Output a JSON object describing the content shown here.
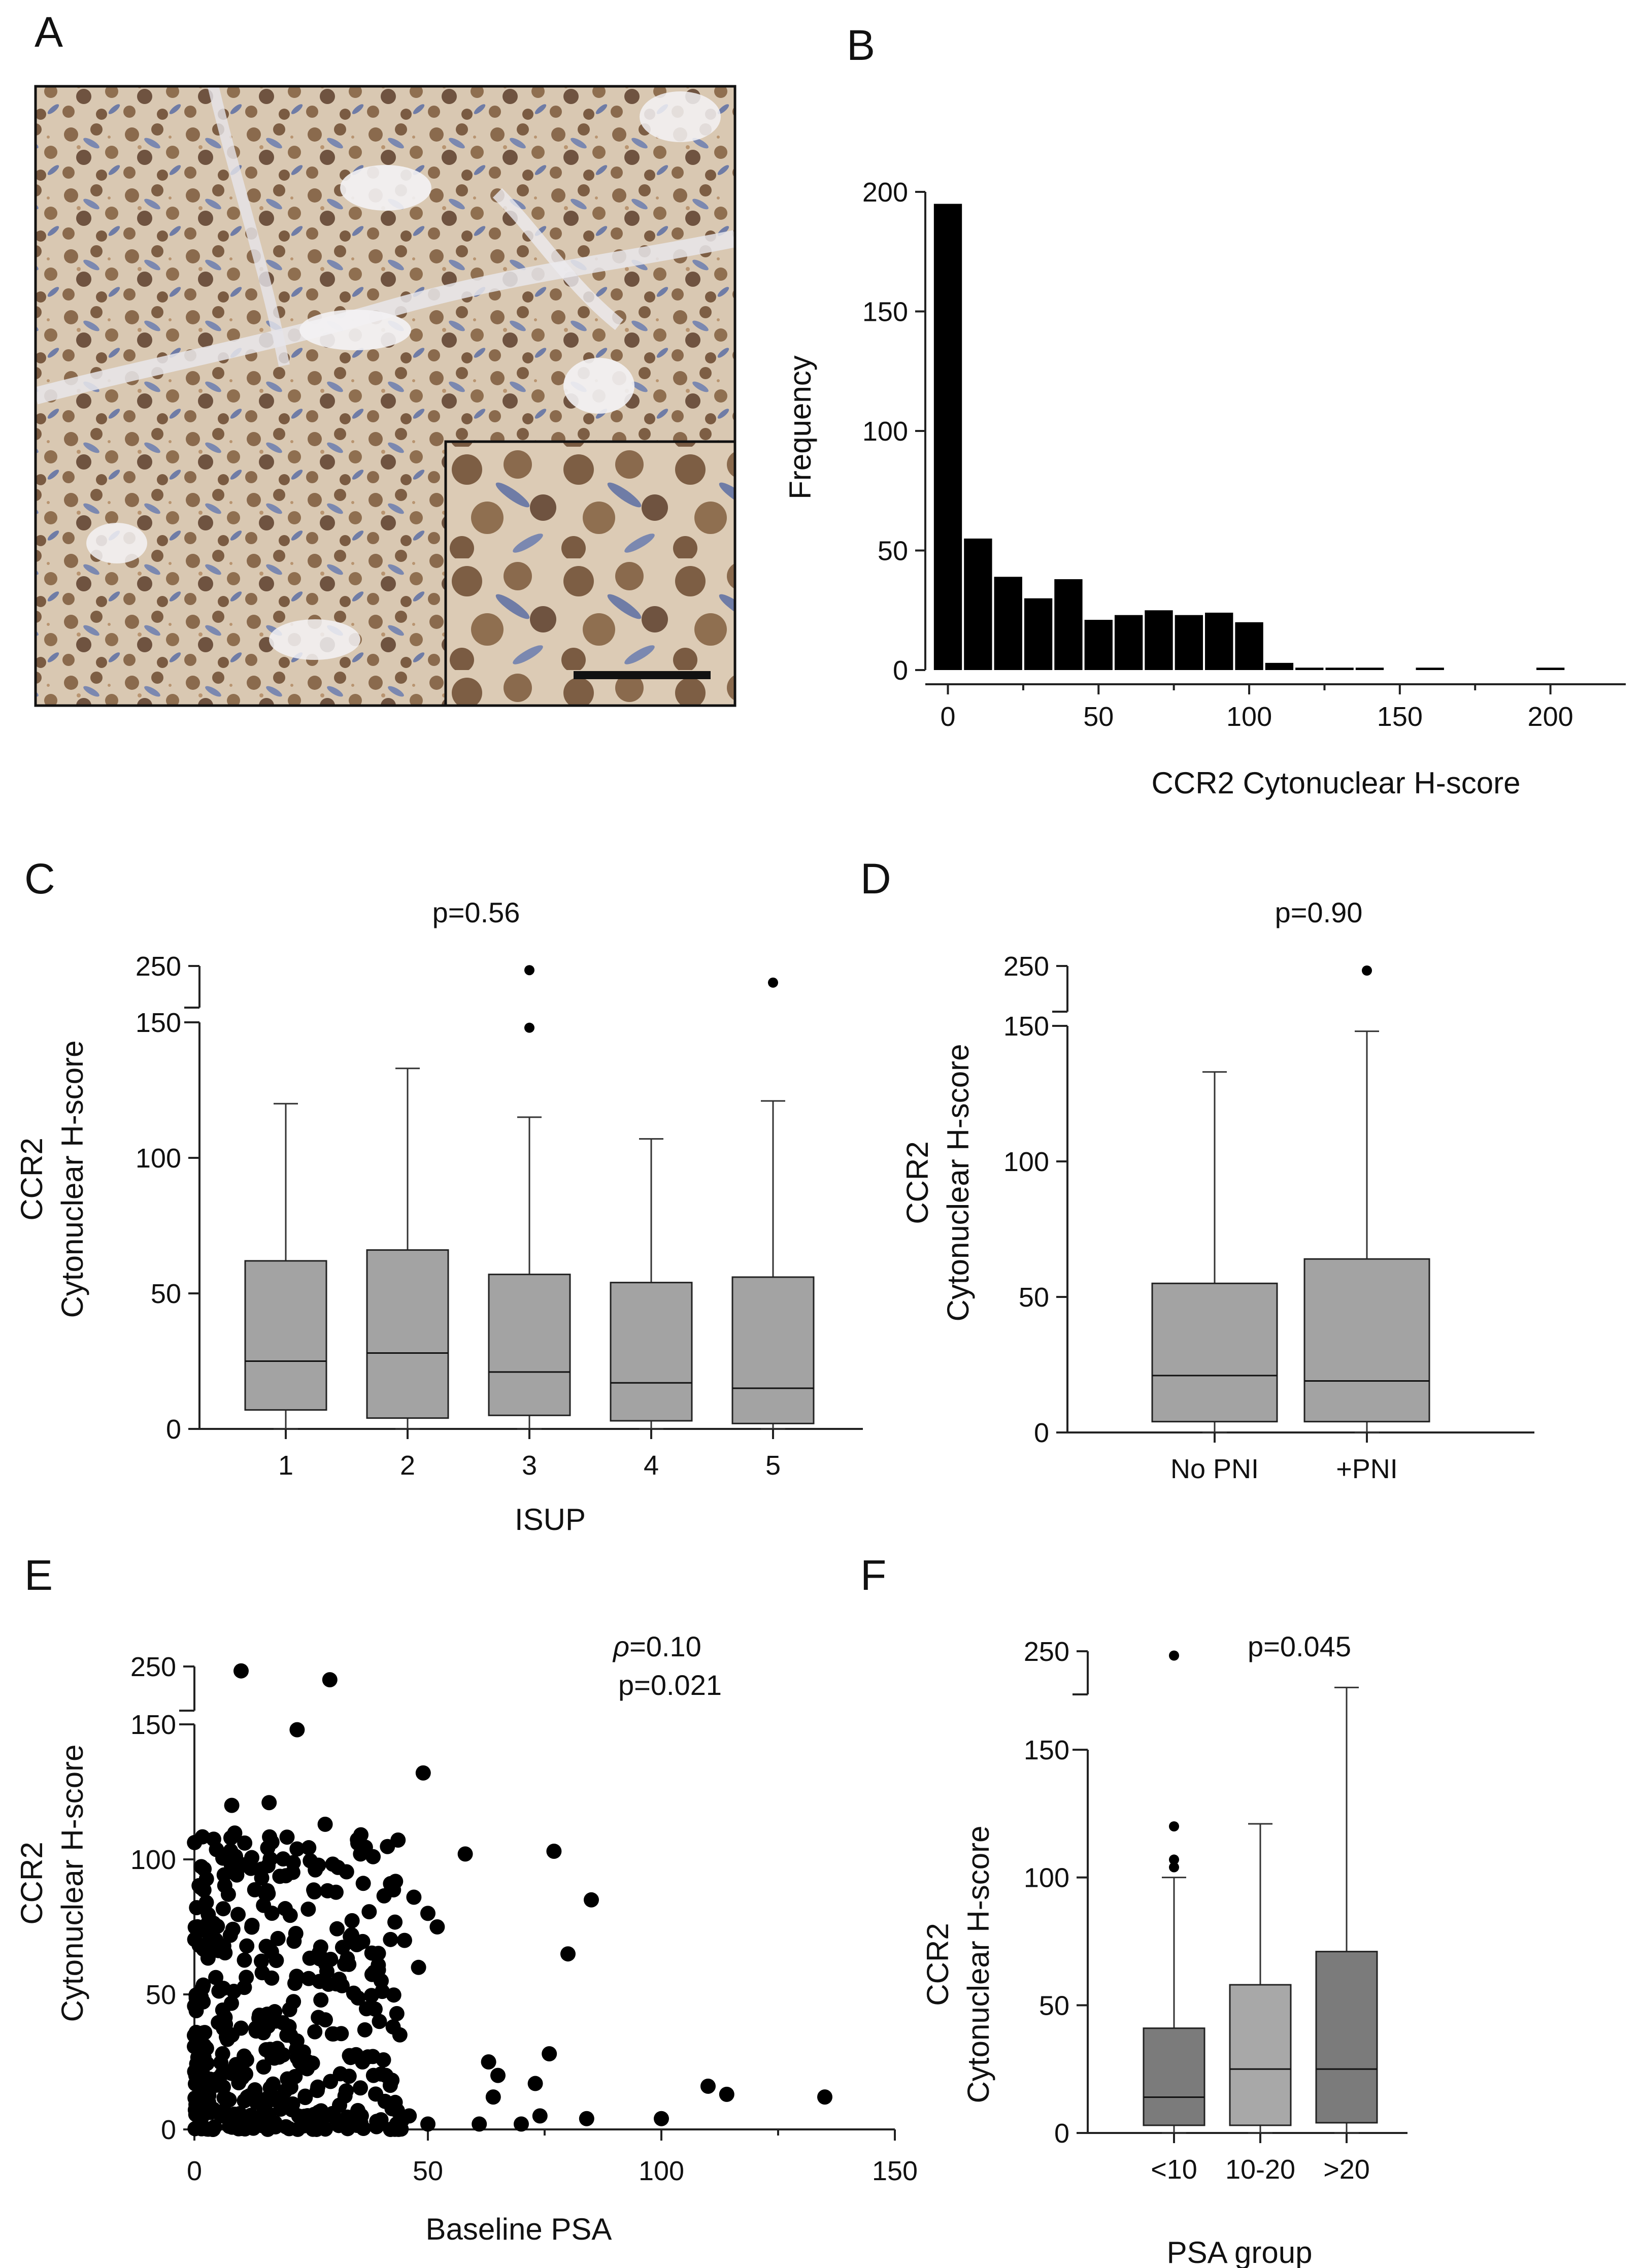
{
  "panels": {
    "A": {
      "letter": "A",
      "image": "Prostate tissue micrograph with CCR2 immunohistochemistry staining (brown cytoplasm/nuclei on blue counterstain), with magnified inset and scale bar"
    },
    "B": {
      "letter": "B",
      "chart_type": "bar",
      "title": "",
      "xlabel": "CCR2 Cytonuclear H-score",
      "ylabel": "Frequency",
      "xlim": [
        -7.5,
        225
      ],
      "ylim": [
        0,
        200
      ],
      "xticks": [
        0,
        50,
        100,
        150,
        200
      ],
      "yticks": [
        0,
        50,
        100,
        150,
        200
      ],
      "bin_width": 10,
      "bin_centers": [
        0,
        10,
        20,
        30,
        40,
        50,
        60,
        70,
        80,
        90,
        100,
        110,
        120,
        130,
        140,
        150,
        160,
        170,
        180,
        190,
        200,
        210
      ],
      "values": [
        195,
        55,
        39,
        30,
        38,
        21,
        23,
        25,
        23,
        24,
        20,
        3,
        1,
        1,
        1,
        0,
        1,
        0,
        0,
        0,
        1,
        0
      ]
    },
    "C": {
      "letter": "C",
      "chart_type": "box",
      "pvalue": "p=0.56",
      "xlabel": "ISUP",
      "ylabel_line1": "CCR2",
      "ylabel_line2": "Cytonuclear H-score",
      "yticks_lower": [
        0,
        50,
        100,
        150
      ],
      "yticks_upper": [
        250
      ],
      "categories": [
        "1",
        "2",
        "3",
        "4",
        "5"
      ],
      "boxes": [
        {
          "min": 0,
          "q1": 7,
          "median": 25,
          "q3": 62,
          "max": 120,
          "outliers": []
        },
        {
          "min": 0,
          "q1": 4,
          "median": 28,
          "q3": 66,
          "max": 133,
          "outliers": []
        },
        {
          "min": 0,
          "q1": 5,
          "median": 21,
          "q3": 57,
          "max": 115,
          "outliers": [
            148,
            240
          ]
        },
        {
          "min": 0,
          "q1": 3,
          "median": 17,
          "q3": 54,
          "max": 107,
          "outliers": []
        },
        {
          "min": 0,
          "q1": 2,
          "median": 15,
          "q3": 56,
          "max": 121,
          "outliers": [
            210
          ]
        }
      ],
      "box_color": "#a3a3a3"
    },
    "D": {
      "letter": "D",
      "chart_type": "box",
      "pvalue": "p=0.90",
      "xlabel": "",
      "ylabel_line1": "CCR2",
      "ylabel_line2": "Cytonuclear H-score",
      "yticks_lower": [
        0,
        50,
        100,
        150
      ],
      "yticks_upper": [
        250
      ],
      "categories": [
        "No PNI",
        "+PNI"
      ],
      "boxes": [
        {
          "min": 0,
          "q1": 4,
          "median": 21,
          "q3": 55,
          "max": 133,
          "outliers": []
        },
        {
          "min": 0,
          "q1": 4,
          "median": 19,
          "q3": 64,
          "max": 148,
          "outliers": [
            240
          ]
        }
      ],
      "box_color": "#a3a3a3"
    },
    "E": {
      "letter": "E",
      "chart_type": "scatter",
      "rho_symbol": "ρ",
      "rho_value": "=0.10",
      "pvalue": "p=0.021",
      "xlabel": "Baseline PSA",
      "ylabel_line1": "CCR2",
      "ylabel_line2": "Cytonuclear H-score",
      "xlim": [
        0,
        150
      ],
      "xticks": [
        0,
        50,
        100,
        150
      ],
      "yticks_lower": [
        0,
        50,
        100,
        150
      ],
      "yticks_upper": [
        250
      ],
      "highlighted_points": [
        [
          10,
          240
        ],
        [
          29,
          220
        ],
        [
          22,
          148
        ],
        [
          49,
          132
        ],
        [
          58,
          102
        ],
        [
          77,
          103
        ],
        [
          85,
          85
        ],
        [
          80,
          65
        ],
        [
          76,
          28
        ],
        [
          63,
          25
        ],
        [
          65,
          20
        ],
        [
          64,
          12
        ],
        [
          73,
          17
        ],
        [
          74,
          5
        ],
        [
          70,
          2
        ],
        [
          61,
          2
        ],
        [
          84,
          4
        ],
        [
          100,
          4
        ],
        [
          110,
          16
        ],
        [
          114,
          13
        ],
        [
          135,
          12
        ],
        [
          8,
          120
        ],
        [
          16,
          121
        ],
        [
          28,
          113
        ],
        [
          35,
          106
        ],
        [
          42,
          91
        ],
        [
          47,
          86
        ],
        [
          50,
          80
        ],
        [
          52,
          75
        ],
        [
          45,
          70
        ],
        [
          48,
          60
        ],
        [
          40,
          55
        ],
        [
          38,
          45
        ],
        [
          44,
          35
        ],
        [
          36,
          25
        ],
        [
          41,
          20
        ],
        [
          43,
          10
        ],
        [
          46,
          5
        ],
        [
          50,
          2
        ],
        [
          39,
          1
        ]
      ],
      "cluster": {
        "n": 420,
        "x_range": [
          0,
          45
        ],
        "y_range": [
          0,
          110
        ],
        "seed": 7
      }
    },
    "F": {
      "letter": "F",
      "chart_type": "box",
      "pvalue": "p=0.045",
      "xlabel": "PSA group",
      "ylabel_line1": "CCR2",
      "ylabel_line2": "Cytonuclear H-score",
      "yticks_lower": [
        0,
        50,
        100,
        150
      ],
      "yticks_upper": [
        250
      ],
      "categories": [
        "<10",
        "10-20",
        ">20"
      ],
      "boxes": [
        {
          "min": 0,
          "q1": 3,
          "median": 14,
          "q3": 41,
          "max": 100,
          "outliers": [
            104,
            107,
            120,
            240
          ]
        },
        {
          "min": 0,
          "q1": 3,
          "median": 25,
          "q3": 58,
          "max": 121,
          "outliers": []
        },
        {
          "min": 0,
          "q1": 4,
          "median": 25,
          "q3": 71,
          "max": 166,
          "outliers": []
        }
      ],
      "box_colors": [
        "#7b7b7b",
        "#a8a8a8",
        "#7b7b7b"
      ]
    }
  }
}
